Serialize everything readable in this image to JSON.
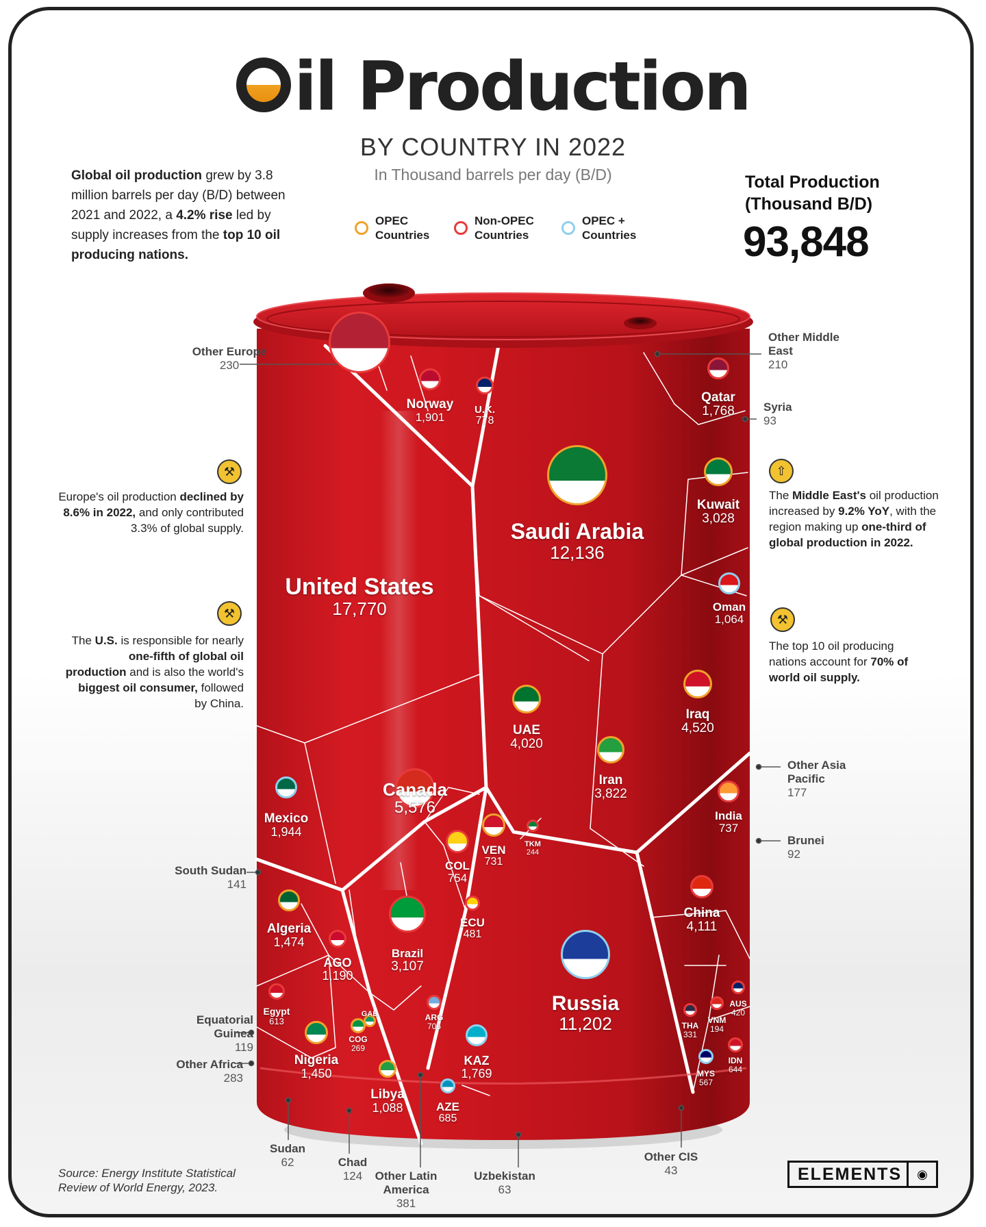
{
  "header": {
    "title_first_letter": "O",
    "title_rest": "il Production",
    "subtitle": "BY COUNTRY IN 2022",
    "units": "In Thousand barrels per day (B/D)"
  },
  "legend": [
    {
      "label": "OPEC\nCountries",
      "color": "#f1a22b"
    },
    {
      "label": "Non-OPEC\nCountries",
      "color": "#e83a3a"
    },
    {
      "label": "OPEC +\nCountries",
      "color": "#8fd0ee"
    }
  ],
  "total": {
    "label": "Total Production\n(Thousand B/D)",
    "value": "93,848"
  },
  "notes": {
    "global": {
      "p1": "Global oil production",
      "p2": " grew by 3.8 million barrels per day (B/D) between 2021 and 2022, a ",
      "p3": "4.2% rise",
      "p4": " led by supply increases from the ",
      "p5": "top 10 oil producing nations."
    },
    "europe": {
      "p1": "Europe's oil production ",
      "p2": "declined by 8.6% in 2022,",
      "p3": " and only contributed 3.3% of global supply."
    },
    "us": {
      "p1": "The ",
      "p2": "U.S.",
      "p3": " is responsible for nearly ",
      "p4": "one-fifth of global oil production",
      "p5": " and is also the world's ",
      "p6": "biggest oil consumer,",
      "p7": " followed by China."
    },
    "middle_east": {
      "p1": "The ",
      "p2": "Middle East's",
      "p3": " oil production increased by ",
      "p4": "9.2% YoY",
      "p5": ", with the region making up ",
      "p6": "one-third of global production in 2022."
    },
    "top10": {
      "p1": "The top 10 oil producing nations account for ",
      "p2": "70% of world oil supply."
    }
  },
  "source": "Source: Energy Institute Statistical\nReview of World Energy, 2023.",
  "brand": "ELEMENTS",
  "icons": {
    "badge_pump": "oil-pump-icon",
    "badge_up": "arrow-up-icon",
    "brand_mark": "elements-logo-icon"
  },
  "colors": {
    "drum_red": "#c8141c",
    "drum_dark": "#8f0c12",
    "opec": "#f1a22b",
    "non_opec": "#e83a3a",
    "opec_plus": "#8fd0ee"
  },
  "chart_data": {
    "type": "voronoi-treemap",
    "title": "Oil Production",
    "subtitle": "BY COUNTRY IN 2022",
    "unit": "In Thousand barrels per day (B/D)",
    "total": 93848,
    "series": [
      {
        "country": "United States",
        "value": 17770,
        "group": "Non-OPEC"
      },
      {
        "country": "Saudi Arabia",
        "value": 12136,
        "group": "OPEC"
      },
      {
        "country": "Russia",
        "value": 11202,
        "group": "OPEC +"
      },
      {
        "country": "Canada",
        "value": 5576,
        "group": "Non-OPEC"
      },
      {
        "country": "Iraq",
        "value": 4520,
        "group": "OPEC"
      },
      {
        "country": "China",
        "value": 4111,
        "group": "Non-OPEC"
      },
      {
        "country": "UAE",
        "value": 4020,
        "group": "OPEC"
      },
      {
        "country": "Iran",
        "value": 3822,
        "group": "OPEC"
      },
      {
        "country": "Brazil",
        "value": 3107,
        "group": "Non-OPEC"
      },
      {
        "country": "Kuwait",
        "value": 3028,
        "group": "OPEC"
      },
      {
        "country": "Mexico",
        "value": 1944,
        "group": "OPEC +"
      },
      {
        "country": "Norway",
        "value": 1901,
        "group": "Non-OPEC"
      },
      {
        "country": "KAZ",
        "value": 1769,
        "group": "OPEC +"
      },
      {
        "country": "Qatar",
        "value": 1768,
        "group": "Non-OPEC"
      },
      {
        "country": "Algeria",
        "value": 1474,
        "group": "OPEC"
      },
      {
        "country": "Nigeria",
        "value": 1450,
        "group": "OPEC"
      },
      {
        "country": "AGO",
        "value": 1190,
        "group": "Non-OPEC"
      },
      {
        "country": "Libya",
        "value": 1088,
        "group": "OPEC"
      },
      {
        "country": "Oman",
        "value": 1064,
        "group": "OPEC +"
      },
      {
        "country": "U.K.",
        "value": 778,
        "group": "Non-OPEC"
      },
      {
        "country": "COL",
        "value": 754,
        "group": "Non-OPEC"
      },
      {
        "country": "India",
        "value": 737,
        "group": "Non-OPEC"
      },
      {
        "country": "VEN",
        "value": 731,
        "group": "OPEC"
      },
      {
        "country": "ARG",
        "value": 706,
        "group": "Non-OPEC"
      },
      {
        "country": "AZE",
        "value": 685,
        "group": "OPEC +"
      },
      {
        "country": "IDN",
        "value": 644,
        "group": "Non-OPEC"
      },
      {
        "country": "Egypt",
        "value": 613,
        "group": "Non-OPEC"
      },
      {
        "country": "MYS",
        "value": 567,
        "group": "OPEC +"
      },
      {
        "country": "ECU",
        "value": 481,
        "group": "Non-OPEC"
      },
      {
        "country": "AUS",
        "value": 420,
        "group": "Non-OPEC"
      },
      {
        "country": "Other Latin America",
        "value": 381,
        "group": "Non-OPEC"
      },
      {
        "country": "THA",
        "value": 331,
        "group": "Non-OPEC"
      },
      {
        "country": "Other Africa",
        "value": 283,
        "group": "Non-OPEC"
      },
      {
        "country": "COG",
        "value": 269,
        "group": "OPEC"
      },
      {
        "country": "TKM",
        "value": 244,
        "group": "Non-OPEC"
      },
      {
        "country": "Other Europe",
        "value": 230,
        "group": "Non-OPEC"
      },
      {
        "country": "Other Middle East",
        "value": 210,
        "group": "Non-OPEC"
      },
      {
        "country": "VNM",
        "value": 194,
        "group": "Non-OPEC"
      },
      {
        "country": "Other Asia Pacific",
        "value": 177,
        "group": "Non-OPEC"
      },
      {
        "country": "South Sudan",
        "value": 141,
        "group": "OPEC +"
      },
      {
        "country": "Chad",
        "value": 124,
        "group": "Non-OPEC"
      },
      {
        "country": "Equatorial Guinea",
        "value": 119,
        "group": "OPEC"
      },
      {
        "country": "Syria",
        "value": 93,
        "group": "Non-OPEC"
      },
      {
        "country": "Brunei",
        "value": 92,
        "group": "OPEC +"
      },
      {
        "country": "Uzbekistan",
        "value": 63,
        "group": "Non-OPEC"
      },
      {
        "country": "Sudan",
        "value": 62,
        "group": "OPEC +"
      },
      {
        "country": "Other CIS",
        "value": 43,
        "group": "Non-OPEC"
      }
    ],
    "cell_labels": [
      {
        "name": "United States",
        "value": "17,770"
      },
      {
        "name": "Saudi Arabia",
        "value": "12,136"
      },
      {
        "name": "Russia",
        "value": "11,202"
      },
      {
        "name": "Canada",
        "value": "5,576"
      },
      {
        "name": "Iraq",
        "value": "4,520"
      },
      {
        "name": "China",
        "value": "4,111"
      },
      {
        "name": "UAE",
        "value": "4,020"
      },
      {
        "name": "Iran",
        "value": "3,822"
      },
      {
        "name": "Brazil",
        "value": "3,107"
      },
      {
        "name": "Kuwait",
        "value": "3,028"
      },
      {
        "name": "Mexico",
        "value": "1,944"
      },
      {
        "name": "Norway",
        "value": "1,901"
      },
      {
        "name": "KAZ",
        "value": "1,769"
      },
      {
        "name": "Qatar",
        "value": "1,768"
      },
      {
        "name": "Algeria",
        "value": "1,474"
      },
      {
        "name": "Nigeria",
        "value": "1,450"
      },
      {
        "name": "AGO",
        "value": "1,190"
      },
      {
        "name": "Libya",
        "value": "1,088"
      },
      {
        "name": "Oman",
        "value": "1,064"
      },
      {
        "name": "U.K.",
        "value": "778"
      },
      {
        "name": "COL",
        "value": "754"
      },
      {
        "name": "India",
        "value": "737"
      },
      {
        "name": "VEN",
        "value": "731"
      },
      {
        "name": "ARG",
        "value": "706"
      },
      {
        "name": "AZE",
        "value": "685"
      },
      {
        "name": "IDN",
        "value": "644"
      },
      {
        "name": "Egypt",
        "value": "613"
      },
      {
        "name": "MYS",
        "value": "567"
      },
      {
        "name": "ECU",
        "value": "481"
      },
      {
        "name": "AUS",
        "value": "420"
      },
      {
        "name": "THA",
        "value": "331"
      },
      {
        "name": "COG",
        "value": "269"
      },
      {
        "name": "TKM",
        "value": "244"
      },
      {
        "name": "VNM",
        "value": "194"
      },
      {
        "name": "GAB",
        "value": ""
      }
    ],
    "callouts": [
      {
        "name": "Other Europe",
        "value": "230"
      },
      {
        "name": "Other Middle East",
        "value": "210"
      },
      {
        "name": "Syria",
        "value": "93"
      },
      {
        "name": "Other Asia Pacific",
        "value": "177"
      },
      {
        "name": "Brunei",
        "value": "92"
      },
      {
        "name": "South Sudan",
        "value": "141"
      },
      {
        "name": "Equatorial Guinea",
        "value": "119"
      },
      {
        "name": "Other Africa",
        "value": "283"
      },
      {
        "name": "Sudan",
        "value": "62"
      },
      {
        "name": "Chad",
        "value": "124"
      },
      {
        "name": "Other Latin America",
        "value": "381"
      },
      {
        "name": "Uzbekistan",
        "value": "63"
      },
      {
        "name": "Other CIS",
        "value": "43"
      }
    ]
  }
}
